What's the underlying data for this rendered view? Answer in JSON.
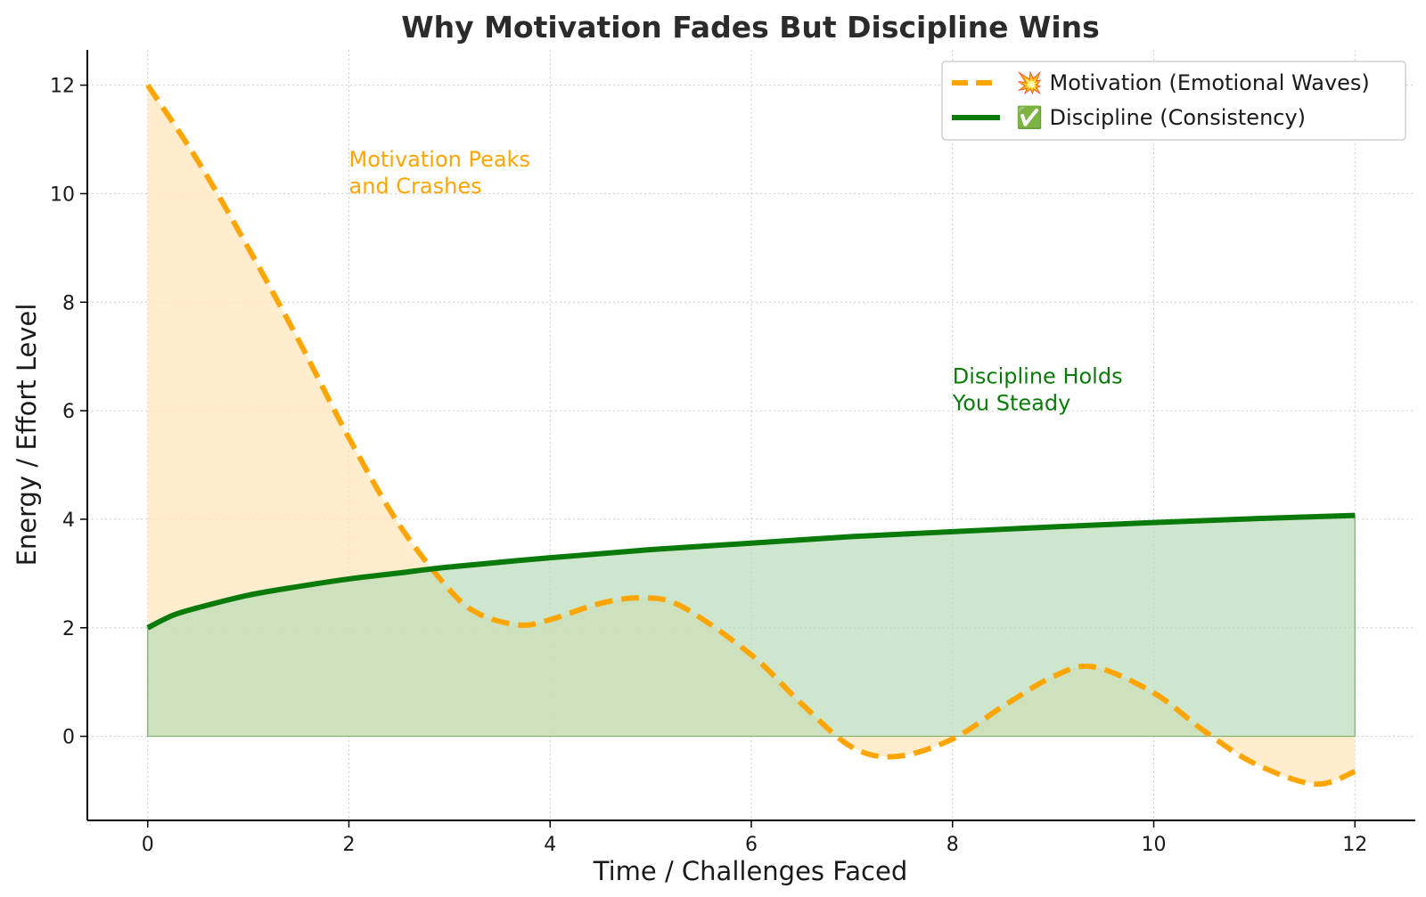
{
  "chart_data": {
    "type": "line",
    "title": "Why Motivation Fades But Discipline Wins",
    "xlabel": "Time / Challenges Faced",
    "ylabel": "Energy / Effort Level",
    "xlim": [
      -0.6,
      12.6
    ],
    "ylim": [
      -1.55,
      12.65
    ],
    "xticks": [
      0,
      2,
      4,
      6,
      8,
      10,
      12
    ],
    "yticks": [
      0,
      2,
      4,
      6,
      8,
      10,
      12
    ],
    "grid": true,
    "legend_position": "top-right",
    "series": [
      {
        "name": "💥 Motivation (Emotional Waves)",
        "style": "dashed",
        "color": "#ffa500",
        "fill_color": "#ffe9c2",
        "x": [
          0,
          0.5,
          1,
          1.5,
          2,
          2.5,
          3,
          3.3,
          3.7,
          4,
          4.5,
          4.9,
          5.3,
          6,
          6.5,
          7,
          7.45,
          8,
          8.5,
          9,
          9.4,
          10,
          10.5,
          11,
          11.6,
          12
        ],
        "y": [
          12,
          10.6,
          9.0,
          7.3,
          5.5,
          3.9,
          2.7,
          2.25,
          2.05,
          2.15,
          2.45,
          2.55,
          2.4,
          1.5,
          0.6,
          -0.2,
          -0.37,
          -0.05,
          0.55,
          1.1,
          1.28,
          0.8,
          0.1,
          -0.5,
          -0.88,
          -0.65
        ]
      },
      {
        "name": "✅ Discipline (Consistency)",
        "style": "solid",
        "color": "#0a7a0a",
        "fill_color": "#b8dcb8",
        "x": [
          0,
          0.25,
          0.5,
          1,
          1.5,
          2,
          2.5,
          3,
          4,
          5,
          6,
          7,
          8,
          9,
          10,
          11,
          12
        ],
        "y": [
          2.0,
          2.23,
          2.37,
          2.6,
          2.76,
          2.9,
          3.01,
          3.12,
          3.29,
          3.44,
          3.56,
          3.68,
          3.77,
          3.86,
          3.94,
          4.01,
          4.07
        ]
      }
    ],
    "annotations": [
      {
        "text_lines": [
          "Motivation Peaks",
          "and Crashes"
        ],
        "x": 2,
        "y": 10.5,
        "color": "#ffa500"
      },
      {
        "text_lines": [
          "Discipline Holds",
          "You Steady"
        ],
        "x": 8,
        "y": 6.5,
        "color": "#0a7a0a"
      }
    ]
  }
}
